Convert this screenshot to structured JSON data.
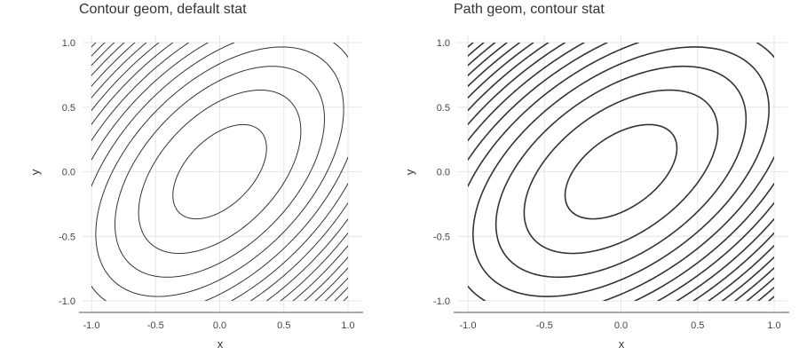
{
  "chart_data": [
    {
      "type": "contour",
      "title": "Contour geom, default stat",
      "geom": "contour",
      "xlabel": "x",
      "ylabel": "y",
      "xlim": [
        -1.0,
        1.0
      ],
      "ylim": [
        -1.0,
        1.0
      ],
      "xticks": [
        -1.0,
        -0.5,
        0.0,
        0.5,
        1.0
      ],
      "xtick_labels": [
        "-1.0",
        "-0.5",
        "0.0",
        "0.5",
        "1.0"
      ],
      "yticks": [
        -1.0,
        -0.5,
        0.0,
        0.5,
        1.0
      ],
      "ytick_labels": [
        "-1.0",
        "-0.5",
        "0.0",
        "0.5",
        "1.0"
      ],
      "grid": true,
      "line_color": "#333333",
      "field": "x^2 - x*y + y^2",
      "levels": [
        0.1,
        0.3,
        0.5,
        0.7,
        0.9,
        1.1,
        1.3,
        1.5,
        1.7,
        1.9,
        2.1,
        2.3,
        2.5,
        2.7,
        2.9
      ]
    },
    {
      "type": "contour",
      "title": "Path geom, contour stat",
      "geom": "path",
      "xlabel": "x",
      "ylabel": "y",
      "xlim": [
        -1.0,
        1.0
      ],
      "ylim": [
        -1.0,
        1.0
      ],
      "xticks": [
        -1.0,
        -0.5,
        0.0,
        0.5,
        1.0
      ],
      "xtick_labels": [
        "-1.0",
        "-0.5",
        "0.0",
        "0.5",
        "1.0"
      ],
      "yticks": [
        -1.0,
        -0.5,
        0.0,
        0.5,
        1.0
      ],
      "ytick_labels": [
        "-1.0",
        "-0.5",
        "0.0",
        "0.5",
        "1.0"
      ],
      "grid": true,
      "line_color": "#333333",
      "field": "x^2 - x*y + y^2",
      "levels": [
        0.1,
        0.3,
        0.5,
        0.7,
        0.9,
        1.1,
        1.3,
        1.5,
        1.7,
        1.9,
        2.1,
        2.3,
        2.5,
        2.7,
        2.9
      ]
    }
  ]
}
